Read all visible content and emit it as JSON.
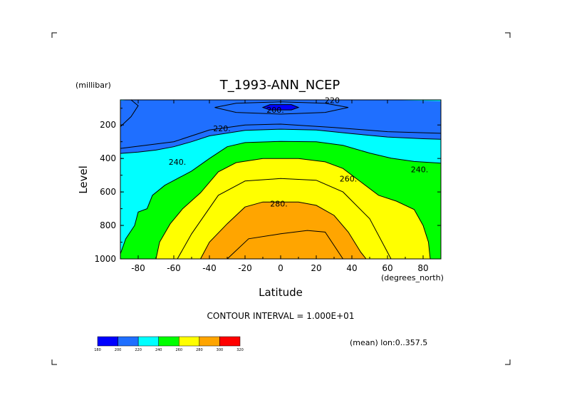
{
  "chart_data": {
    "type": "heatmap",
    "title": "T_1993-ANN_NCEP",
    "xlabel": "Latitude",
    "x_unit_label": "(degrees_north)",
    "ylabel": "Level",
    "y_unit_label": "(millibar)",
    "xlim": [
      -90,
      90
    ],
    "ylim": [
      1000,
      50
    ],
    "x_ticks": [
      -80,
      -60,
      -40,
      -20,
      0,
      20,
      40,
      60,
      80
    ],
    "x_tick_labels": [
      "-80",
      "-60",
      "-40",
      "-20",
      "0",
      "20",
      "40",
      "60",
      "80"
    ],
    "y_ticks": [
      200,
      400,
      600,
      800,
      1000
    ],
    "y_tick_labels": [
      "200",
      "400",
      "600",
      "800",
      "1000"
    ],
    "contour_interval_text": "CONTOUR INTERVAL = 1.000E+01",
    "contour_labels": [
      "220",
      "200.",
      "220.",
      "240.",
      "260.",
      "240.",
      "280."
    ],
    "mean_note": "(mean) lon:0..357.5",
    "colorbar": {
      "levels": [
        "180",
        "200",
        "220",
        "240",
        "260",
        "280",
        "300",
        "320"
      ],
      "colors": [
        "#0000ff",
        "#1f6fff",
        "#00ffff",
        "#00ff00",
        "#ffff00",
        "#ffa500",
        "#ff0000"
      ]
    },
    "bands": [
      {
        "range": "180-200",
        "color": "#0000ff",
        "bounds": [
          {
            "lat": -10,
            "lev": 95
          },
          {
            "lat": -6,
            "lev": 78
          },
          {
            "lat": 6,
            "lev": 78
          },
          {
            "lat": 10,
            "lev": 95
          },
          {
            "lat": 6,
            "lev": 110
          },
          {
            "lat": -6,
            "lev": 110
          }
        ]
      },
      {
        "range": "220-240",
        "color": "#00ffff",
        "upper": [
          {
            "lat": -90,
            "lev": 370
          },
          {
            "lat": -80,
            "lev": 362
          },
          {
            "lat": -70,
            "lev": 350
          },
          {
            "lat": -60,
            "lev": 330
          },
          {
            "lat": -50,
            "lev": 300
          },
          {
            "lat": -40,
            "lev": 265
          },
          {
            "lat": -20,
            "lev": 232
          },
          {
            "lat": 0,
            "lev": 225
          },
          {
            "lat": 20,
            "lev": 230
          },
          {
            "lat": 40,
            "lev": 252
          },
          {
            "lat": 60,
            "lev": 272
          },
          {
            "lat": 80,
            "lev": 282
          },
          {
            "lat": 90,
            "lev": 285
          }
        ],
        "lower": [
          {
            "lat": 90,
            "lev": 1000
          },
          {
            "lat": -90,
            "lev": 1000
          }
        ],
        "top_strip": [
          {
            "lat": -90,
            "lev": 55
          },
          {
            "lat": -85,
            "lev": 50
          },
          {
            "lat": 60,
            "lev": 50
          },
          {
            "lat": 90,
            "lev": 58
          },
          {
            "lat": 90,
            "lev": 50
          },
          {
            "lat": -90,
            "lev": 50
          }
        ]
      },
      {
        "range": "240-260",
        "color": "#00ff00",
        "upper": [
          {
            "lat": -90,
            "lev": 970
          },
          {
            "lat": -87,
            "lev": 880
          },
          {
            "lat": -82,
            "lev": 800
          },
          {
            "lat": -80,
            "lev": 720
          },
          {
            "lat": -75,
            "lev": 700
          },
          {
            "lat": -72,
            "lev": 620
          },
          {
            "lat": -65,
            "lev": 560
          },
          {
            "lat": -50,
            "lev": 475
          },
          {
            "lat": -40,
            "lev": 400
          },
          {
            "lat": -30,
            "lev": 330
          },
          {
            "lat": -20,
            "lev": 305
          },
          {
            "lat": 0,
            "lev": 298
          },
          {
            "lat": 20,
            "lev": 300
          },
          {
            "lat": 35,
            "lev": 322
          },
          {
            "lat": 50,
            "lev": 368
          },
          {
            "lat": 62,
            "lev": 398
          },
          {
            "lat": 75,
            "lev": 418
          },
          {
            "lat": 90,
            "lev": 428
          }
        ],
        "lower": [
          {
            "lat": 90,
            "lev": 1000
          },
          {
            "lat": -90,
            "lev": 1000
          }
        ]
      },
      {
        "range": "260-280",
        "color": "#ffff00",
        "upper": [
          {
            "lat": -90,
            "lev": 1000
          },
          {
            "lat": -70,
            "lev": 1000
          },
          {
            "lat": -68,
            "lev": 900
          },
          {
            "lat": -62,
            "lev": 790
          },
          {
            "lat": -55,
            "lev": 700
          },
          {
            "lat": -45,
            "lev": 605
          },
          {
            "lat": -35,
            "lev": 480
          },
          {
            "lat": -25,
            "lev": 425
          },
          {
            "lat": -10,
            "lev": 400
          },
          {
            "lat": 10,
            "lev": 400
          },
          {
            "lat": 25,
            "lev": 420
          },
          {
            "lat": 35,
            "lev": 460
          },
          {
            "lat": 45,
            "lev": 540
          },
          {
            "lat": 55,
            "lev": 620
          },
          {
            "lat": 65,
            "lev": 655
          },
          {
            "lat": 75,
            "lev": 705
          },
          {
            "lat": 80,
            "lev": 800
          },
          {
            "lat": 83,
            "lev": 900
          },
          {
            "lat": 84,
            "lev": 1000
          },
          {
            "lat": 90,
            "lev": 1000
          }
        ],
        "lower": []
      },
      {
        "range": "280-300",
        "color": "#ffa500",
        "upper": [
          {
            "lat": -45,
            "lev": 1000
          },
          {
            "lat": -40,
            "lev": 900
          },
          {
            "lat": -30,
            "lev": 790
          },
          {
            "lat": -20,
            "lev": 690
          },
          {
            "lat": -10,
            "lev": 660
          },
          {
            "lat": 10,
            "lev": 660
          },
          {
            "lat": 20,
            "lev": 680
          },
          {
            "lat": 30,
            "lev": 740
          },
          {
            "lat": 38,
            "lev": 840
          },
          {
            "lat": 45,
            "lev": 960
          },
          {
            "lat": 48,
            "lev": 1000
          }
        ],
        "lower": []
      }
    ]
  }
}
